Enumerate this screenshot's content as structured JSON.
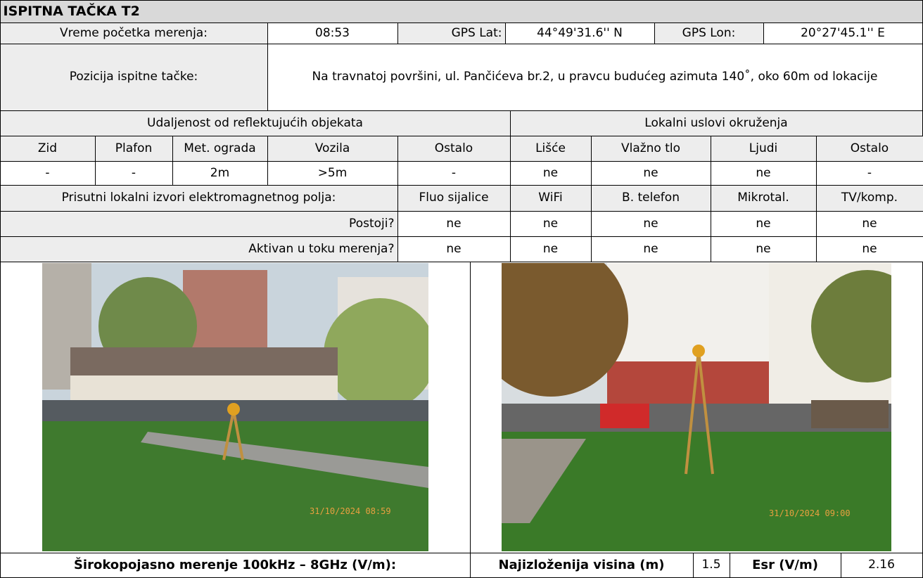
{
  "header": {
    "title": "ISPITNA TAČKA T2"
  },
  "info": {
    "start_label": "Vreme početka merenja:",
    "start": "08:53",
    "lat_label": "GPS Lat:",
    "lat": "44°49'31.6'' N",
    "lon_label": "GPS Lon:",
    "lon": "20°27'45.1'' E",
    "position_label": "Pozicija ispitne tačke:",
    "position": "Na travnatoj površini, ul. Pančićeva br.2, u pravcu budućeg azimuta 140˚, oko 60m od lokacije"
  },
  "distance": {
    "title": "Udaljenost od reflektujućih objekata",
    "columns": [
      "Zid",
      "Plafon",
      "Met. ograda",
      "Vozila",
      "Ostalo"
    ],
    "values": [
      "-",
      "-",
      "2m",
      ">5m",
      "-"
    ]
  },
  "conditions": {
    "title": "Lokalni uslovi okruženja",
    "columns": [
      "Lišće",
      "Vlažno tlo",
      "Ljudi",
      "Ostalo"
    ],
    "values": [
      "ne",
      "ne",
      "ne",
      "-"
    ]
  },
  "sources": {
    "title": "Prisutni lokalni izvori elektromagnetnog polja:",
    "columns": [
      "Fluo sijalice",
      "WiFi",
      "B. telefon",
      "Mikrotal.",
      "TV/komp."
    ],
    "rows": [
      {
        "label": "Postoji?",
        "values": [
          "ne",
          "ne",
          "ne",
          "ne",
          "ne"
        ]
      },
      {
        "label": "Aktivan u toku merenja?",
        "values": [
          "ne",
          "ne",
          "ne",
          "ne",
          "ne"
        ]
      }
    ]
  },
  "photos": [
    {
      "stamp": "31/10/2024 08:59"
    },
    {
      "stamp": "31/10/2024 09:00"
    }
  ],
  "footer": {
    "broadband_label": "Širokopojasno merenje 100kHz – 8GHz (V/m):",
    "height_label": "Najizloženija visina (m)",
    "height": "1.5",
    "esr_label": "Esr (V/m)",
    "esr": "2.16"
  }
}
